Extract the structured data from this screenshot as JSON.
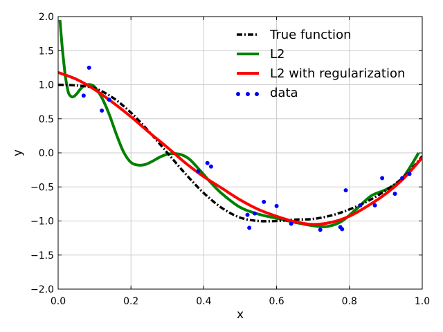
{
  "chart_data": {
    "type": "line",
    "title": "",
    "xlabel": "x",
    "ylabel": "y",
    "xlim": [
      0.0,
      1.0
    ],
    "ylim": [
      -2.0,
      2.0
    ],
    "xticks": [
      "0.0",
      "0.2",
      "0.4",
      "0.6",
      "0.8",
      "1.0"
    ],
    "yticks": [
      "2.0",
      "1.5",
      "1.0",
      "0.5",
      "0.0",
      "−0.5",
      "−1.0",
      "−1.5",
      "−2.0"
    ],
    "grid": true,
    "legend_position": "top-right",
    "series": [
      {
        "name": "True function",
        "kind": "line",
        "style": "dashdot",
        "color": "#000000",
        "x": [
          0.0,
          0.05,
          0.1,
          0.15,
          0.2,
          0.25,
          0.3,
          0.35,
          0.4,
          0.45,
          0.5,
          0.55,
          0.6,
          0.65,
          0.7,
          0.75,
          0.8,
          0.85,
          0.9,
          0.95,
          1.0
        ],
        "y": [
          1.0,
          0.99,
          0.95,
          0.81,
          0.59,
          0.31,
          0.0,
          -0.31,
          -0.59,
          -0.81,
          -0.95,
          -1.0,
          -1.0,
          -0.98,
          -0.97,
          -0.92,
          -0.83,
          -0.71,
          -0.55,
          -0.35,
          -0.05
        ]
      },
      {
        "name": "L2",
        "kind": "line",
        "style": "solid",
        "color": "#008000",
        "x": [
          0.005,
          0.01,
          0.015,
          0.02,
          0.025,
          0.03,
          0.04,
          0.05,
          0.06,
          0.07,
          0.08,
          0.09,
          0.1,
          0.12,
          0.14,
          0.16,
          0.18,
          0.2,
          0.22,
          0.24,
          0.26,
          0.28,
          0.3,
          0.32,
          0.34,
          0.36,
          0.38,
          0.4,
          0.42,
          0.45,
          0.5,
          0.55,
          0.6,
          0.65,
          0.7,
          0.74,
          0.78,
          0.82,
          0.86,
          0.9,
          0.94,
          0.97,
          0.99
        ],
        "y": [
          1.95,
          1.62,
          1.35,
          1.12,
          0.96,
          0.86,
          0.82,
          0.86,
          0.93,
          0.98,
          1.0,
          1.0,
          0.97,
          0.81,
          0.57,
          0.27,
          0.01,
          -0.14,
          -0.18,
          -0.17,
          -0.12,
          -0.06,
          -0.02,
          -0.01,
          -0.03,
          -0.09,
          -0.2,
          -0.32,
          -0.44,
          -0.6,
          -0.8,
          -0.9,
          -0.96,
          -1.02,
          -1.07,
          -1.08,
          -1.0,
          -0.82,
          -0.63,
          -0.54,
          -0.41,
          -0.18,
          0.0
        ]
      },
      {
        "name": "L2 with regularization",
        "kind": "line",
        "style": "solid",
        "color": "#ff0000",
        "x": [
          0.0,
          0.05,
          0.1,
          0.15,
          0.2,
          0.25,
          0.3,
          0.35,
          0.4,
          0.45,
          0.5,
          0.55,
          0.6,
          0.65,
          0.7,
          0.75,
          0.8,
          0.85,
          0.9,
          0.95,
          1.0
        ],
        "y": [
          1.18,
          1.08,
          0.93,
          0.74,
          0.53,
          0.3,
          0.08,
          -0.15,
          -0.35,
          -0.52,
          -0.69,
          -0.83,
          -0.93,
          -1.01,
          -1.05,
          -1.02,
          -0.93,
          -0.78,
          -0.6,
          -0.37,
          -0.07
        ]
      },
      {
        "name": "data",
        "kind": "scatter",
        "color": "#0000ff",
        "x": [
          0.07,
          0.085,
          0.12,
          0.14,
          0.385,
          0.41,
          0.42,
          0.52,
          0.525,
          0.54,
          0.565,
          0.6,
          0.64,
          0.72,
          0.775,
          0.78,
          0.79,
          0.83,
          0.87,
          0.89,
          0.925,
          0.945,
          0.965
        ],
        "y": [
          0.84,
          1.25,
          0.62,
          0.78,
          -0.27,
          -0.15,
          -0.2,
          -0.91,
          -1.1,
          -0.89,
          -0.72,
          -0.78,
          -1.04,
          -1.13,
          -1.09,
          -1.12,
          -0.55,
          -0.77,
          -0.77,
          -0.37,
          -0.6,
          -0.37,
          -0.31
        ]
      }
    ]
  }
}
